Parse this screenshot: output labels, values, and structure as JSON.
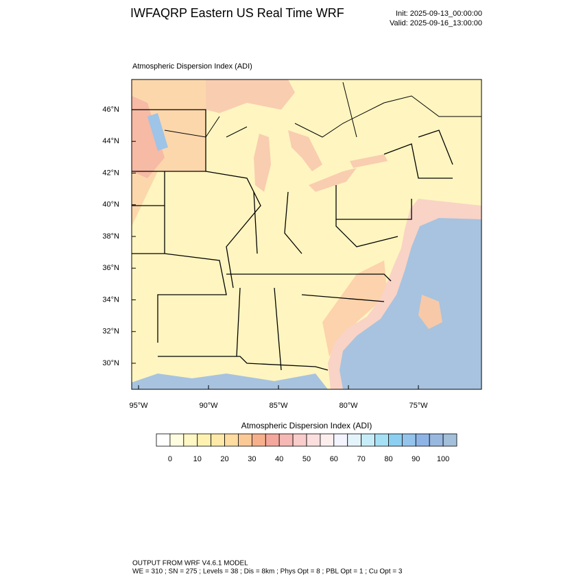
{
  "header": {
    "title": "IWFAQRP Eastern US Real Time WRF",
    "init": "Init: 2025-09-13_00:00:00",
    "valid": "Valid: 2025-09-16_13:00:00"
  },
  "map": {
    "title": "Atmospheric Dispersion Index   (ADI)",
    "lat_labels": [
      "46°N",
      "44°N",
      "42°N",
      "40°N",
      "38°N",
      "36°N",
      "34°N",
      "32°N",
      "30°N"
    ],
    "lon_labels": [
      "95°W",
      "90°W",
      "85°W",
      "80°W",
      "75°W"
    ]
  },
  "colorbar": {
    "title": "Atmospheric Dispersion Index  (ADI)",
    "colors": [
      "#ffffff",
      "#fffde0",
      "#fff7c4",
      "#fff2b0",
      "#ffe9a8",
      "#ffdca0",
      "#fbc996",
      "#f7b08c",
      "#f4a79c",
      "#f6b8b4",
      "#f9cdcb",
      "#fbdede",
      "#fdeeee",
      "#f4f4ff",
      "#e4f4fb",
      "#c6ecf8",
      "#a6e0f5",
      "#8ccff0",
      "#94c4ec",
      "#8eb4e6",
      "#98b8df",
      "#a3bfd9"
    ],
    "ticks": [
      0,
      10,
      20,
      30,
      40,
      50,
      60,
      70,
      80,
      90,
      100
    ]
  },
  "footer": {
    "line1": "OUTPUT FROM WRF V4.6.1 MODEL",
    "line2": "WE = 310 ; SN = 275 ; Levels = 38 ; Dis = 8km ; Phys Opt = 8 ; PBL Opt = 1 ; Cu Opt = 3"
  }
}
